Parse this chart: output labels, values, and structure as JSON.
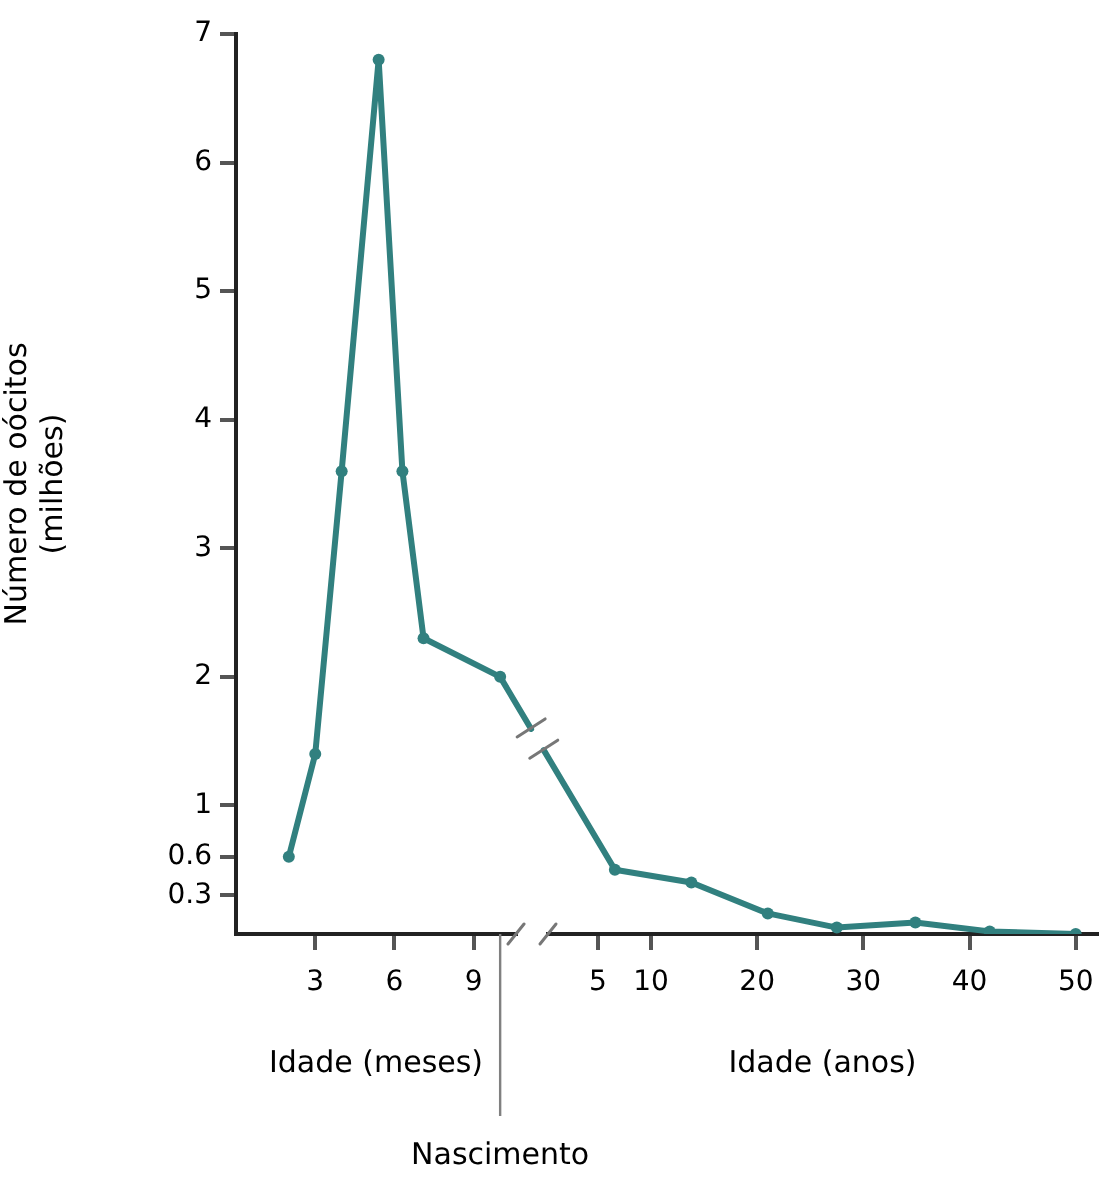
{
  "chart_data": [
    {
      "type": "line",
      "xlabel": "Idade (meses)",
      "ylabel": "Número de oócitos\n(milhões)",
      "x": [
        2,
        3,
        4,
        5.4,
        6.3,
        7.1,
        10.0
      ],
      "values": [
        0.6,
        1.4,
        3.6,
        6.8,
        3.6,
        2.3,
        2.0
      ],
      "color": "#31807f",
      "xlim": [
        0,
        10.6
      ],
      "xticks": [
        3,
        6,
        9
      ],
      "ylim": [
        0,
        7
      ],
      "yticks": [
        0.3,
        0.6,
        1,
        2,
        3,
        4,
        5,
        6,
        7
      ],
      "marker": "circle",
      "legend": false,
      "ref_lines": [
        {
          "axis": "x",
          "value": 10,
          "label": "Nascimento",
          "color": "#808080"
        }
      ]
    },
    {
      "type": "line",
      "xlabel": "Idade (anos)",
      "x": [
        6.6,
        13.8,
        21,
        27.5,
        34.9,
        41.9,
        50
      ],
      "values": [
        0.5,
        0.4,
        0.16,
        0.05,
        0.09,
        0.02,
        0
      ],
      "color": "#31807f",
      "xlim": [
        0.3,
        52
      ],
      "xticks": [
        5,
        10,
        20,
        30,
        40,
        50
      ],
      "ylim": [
        0,
        7
      ],
      "tick_labels": "x",
      "marker": "circle",
      "legend": false
    }
  ]
}
